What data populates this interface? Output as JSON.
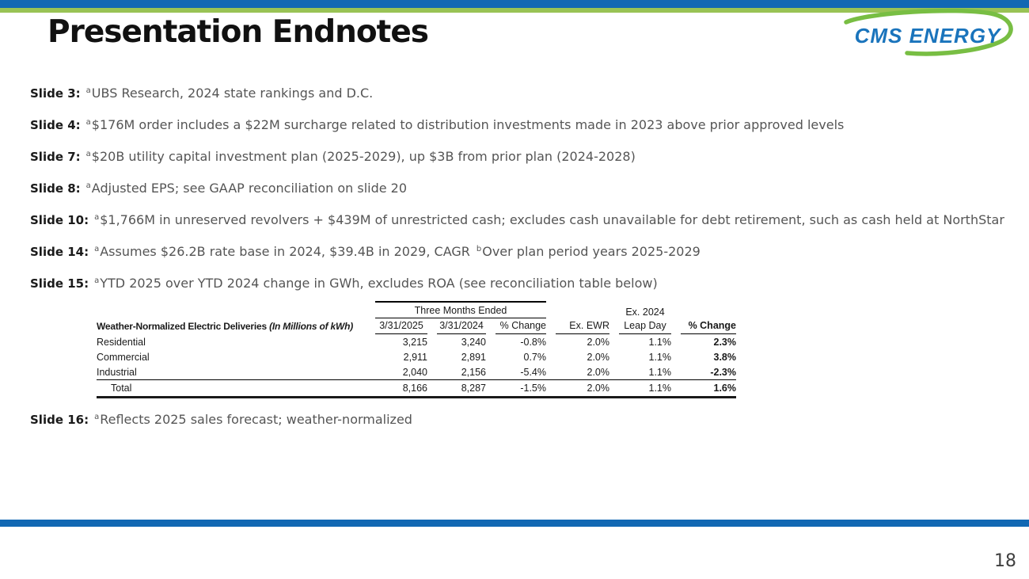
{
  "slide": {
    "title": "Presentation Endnotes",
    "page_number": "18"
  },
  "logo": {
    "text": "CMS ENERGY"
  },
  "colors": {
    "top_bar_blue": "#1268B3",
    "top_bar_green": "#99C355",
    "bottom_bar_blue": "#1268B3",
    "logo_blue": "#1A74BC",
    "logo_swoosh_green": "#78BE43",
    "note_text_gray": "#555555"
  },
  "notes": [
    {
      "label": "Slide 3:",
      "segments": [
        {
          "sup": "a"
        },
        {
          "text": "UBS Research, 2024 state rankings and D.C."
        }
      ]
    },
    {
      "label": "Slide 4:",
      "segments": [
        {
          "sup": "a"
        },
        {
          "text": "$176M order includes a $22M surcharge related to distribution investments made in 2023 above prior approved levels"
        }
      ]
    },
    {
      "label": "Slide 7:",
      "segments": [
        {
          "sup": "a"
        },
        {
          "text": "$20B utility capital investment plan (2025-2029), up $3B from prior plan (2024-2028)"
        }
      ]
    },
    {
      "label": "Slide 8:",
      "segments": [
        {
          "sup": "a"
        },
        {
          "text": "Adjusted EPS; see GAAP reconciliation on slide 20"
        }
      ]
    },
    {
      "label": "Slide 10:",
      "segments": [
        {
          "sup": "a"
        },
        {
          "text": "$1,766M in unreserved revolvers + $439M of unrestricted cash; excludes cash unavailable for debt retirement, such as cash held at NorthStar"
        }
      ]
    },
    {
      "label": "Slide 14:",
      "segments": [
        {
          "sup": "a"
        },
        {
          "text": "Assumes $26.2B rate base in 2024, $39.4B in 2029, CAGR "
        },
        {
          "sup": "b"
        },
        {
          "text": "Over plan period years 2025-2029"
        }
      ]
    },
    {
      "label": "Slide 15:",
      "segments": [
        {
          "sup": "a"
        },
        {
          "text": "YTD 2025 over YTD 2024 change in GWh, excludes ROA (see reconciliation table below)"
        }
      ]
    },
    {
      "label": "Slide 16:",
      "segments": [
        {
          "sup": "a"
        },
        {
          "text": "Reflects 2025 sales forecast; weather-normalized"
        }
      ]
    }
  ],
  "table": {
    "group_header": "Three Months Ended",
    "ex2024_label": "Ex. 2024",
    "row_header_bold": "Weather-Normalized Electric Deliveries",
    "row_header_italic": "(In Millions of kWh)",
    "columns": [
      "3/31/2025",
      "3/31/2024",
      "% Change",
      "Ex. EWR",
      "Leap Day",
      "% Change"
    ],
    "rows": [
      {
        "label": "Residential",
        "values": [
          "3,215",
          "3,240",
          "-0.8%",
          "2.0%",
          "1.1%",
          "2.3%"
        ]
      },
      {
        "label": "Commercial",
        "values": [
          "2,911",
          "2,891",
          "0.7%",
          "2.0%",
          "1.1%",
          "3.8%"
        ]
      },
      {
        "label": "Industrial",
        "values": [
          "2,040",
          "2,156",
          "-5.4%",
          "2.0%",
          "1.1%",
          "-2.3%"
        ]
      },
      {
        "label": "Total",
        "values": [
          "8,166",
          "8,287",
          "-1.5%",
          "2.0%",
          "1.1%",
          "1.6%"
        ],
        "is_total": true
      }
    ]
  }
}
